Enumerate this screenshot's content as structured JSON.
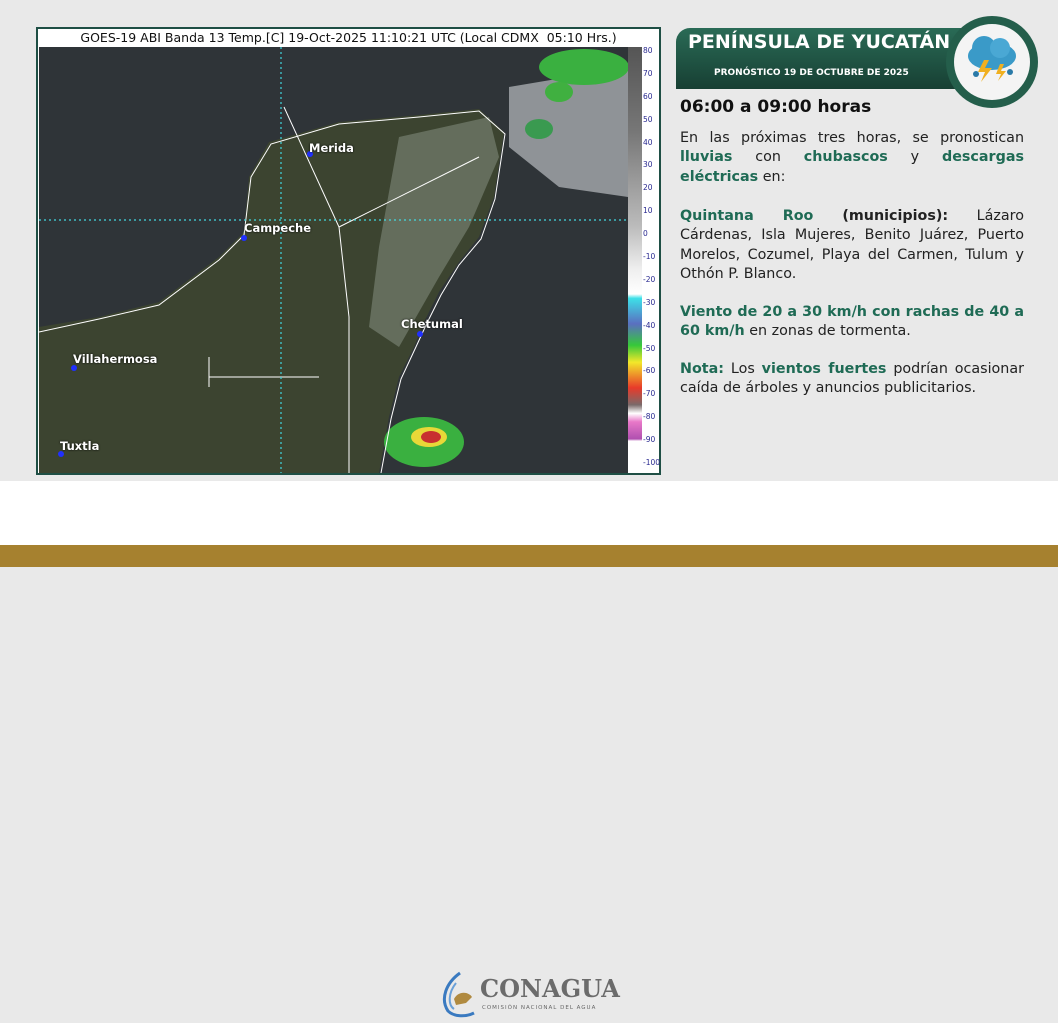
{
  "map": {
    "title": "GOES-19 ABI Banda 13 Temp.[C] 19-Oct-2025 11:10:21 UTC (Local CDMX  05:10 Hrs.)",
    "cities": [
      "Merida",
      "Campeche",
      "Chetumal",
      "Villahermosa",
      "Tuxtla"
    ],
    "colorbar_ticks": [
      "80",
      "70",
      "60",
      "50",
      "40",
      "30",
      "20",
      "10",
      "0",
      "-10",
      "-20",
      "-30",
      "-40",
      "-50",
      "-60",
      "-70",
      "-80",
      "-90",
      "-100"
    ]
  },
  "forecast": {
    "region": "PENÍNSULA DE YUCATÁN",
    "subtitle": "PRONÓSTICO 19 DE OCTUBRE DE 2025",
    "icon": "storm-cloud-lightning-icon",
    "hours": "06:00 a 09:00 horas",
    "p1": {
      "a": "En las próximas tres horas, se pronostican ",
      "b": "lluvias",
      "c": " con ",
      "d": "chubascos",
      "e": " y ",
      "f": "descargas eléctricas",
      "g": " en:"
    },
    "p2": {
      "a": "Quintana Roo",
      "b": " (municipios):",
      "c": " Lázaro Cárdenas, Isla Mujeres, Benito Juárez, Puerto Morelos, Cozumel, Playa del Carmen, Tulum y Othón P. Blanco."
    },
    "p3": {
      "a": "Viento de 20 a 30 km/h con rachas de 40 a 60 km/h",
      "b": " en zonas de tormenta."
    },
    "p4": {
      "a": "Nota:",
      "b": " Los ",
      "c": "vientos fuertes",
      "d": " podrían ocasionar caída de árboles y anuncios publicitarios."
    }
  },
  "footer": {
    "logo_name": "CONAGUA",
    "logo_subtitle": "COMISIÓN NACIONAL DEL AGUA"
  },
  "colors": {
    "brand_green": "#1f5a48",
    "gold": "#a6812f"
  }
}
